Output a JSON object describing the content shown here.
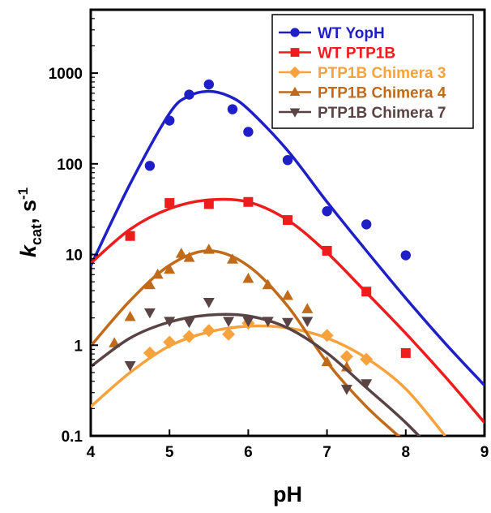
{
  "chart_data": {
    "type": "scatter",
    "xlabel": "pH",
    "ylabel": {
      "main": "k",
      "sub": "cat",
      "sep": ", s",
      "sup": "-1"
    },
    "xlim": [
      4,
      9
    ],
    "ylim": [
      0.1,
      5000
    ],
    "yscale": "log",
    "xticks": [
      4,
      5,
      6,
      7,
      8,
      9
    ],
    "yticks": [
      {
        "value": 0.1,
        "label": "0.1"
      },
      {
        "value": 1,
        "label": "1"
      },
      {
        "value": 10,
        "label": "10"
      },
      {
        "value": 100,
        "label": "100"
      },
      {
        "value": 1000,
        "label": "1000"
      }
    ],
    "legend_position": "top-right",
    "series": [
      {
        "name": "WT YopH",
        "color": "#1f1fc8",
        "marker": "circle",
        "points": [
          [
            4.75,
            95
          ],
          [
            5.0,
            300
          ],
          [
            5.25,
            580
          ],
          [
            5.5,
            750
          ],
          [
            5.8,
            400
          ],
          [
            6.0,
            225
          ],
          [
            6.5,
            110
          ],
          [
            7.0,
            30
          ],
          [
            7.5,
            21.5
          ],
          [
            8.0,
            9.8
          ]
        ],
        "fit": [
          [
            4.0,
            7.5
          ],
          [
            4.5,
            60
          ],
          [
            5.0,
            360
          ],
          [
            5.25,
            560
          ],
          [
            5.5,
            630
          ],
          [
            5.75,
            560
          ],
          [
            6.0,
            400
          ],
          [
            6.5,
            140
          ],
          [
            7.0,
            38
          ],
          [
            7.5,
            11
          ],
          [
            8.0,
            3.3
          ],
          [
            8.5,
            1.05
          ],
          [
            9.0,
            0.36
          ]
        ]
      },
      {
        "name": "WT PTP1B",
        "color": "#ee1c1c",
        "marker": "square",
        "points": [
          [
            4.5,
            16
          ],
          [
            5.0,
            37
          ],
          [
            5.5,
            36
          ],
          [
            6.0,
            38
          ],
          [
            6.5,
            24
          ],
          [
            7.0,
            11
          ],
          [
            7.5,
            3.9
          ],
          [
            8.0,
            0.82
          ]
        ],
        "fit": [
          [
            4.0,
            8
          ],
          [
            4.5,
            19
          ],
          [
            5.0,
            32
          ],
          [
            5.5,
            40
          ],
          [
            6.0,
            38
          ],
          [
            6.5,
            24
          ],
          [
            7.0,
            10.5
          ],
          [
            7.5,
            3.8
          ],
          [
            8.0,
            1.35
          ],
          [
            8.5,
            0.45
          ],
          [
            9.0,
            0.14
          ]
        ]
      },
      {
        "name": "PTP1B Chimera 3",
        "color": "#f7a23c",
        "marker": "diamond",
        "points": [
          [
            4.75,
            0.82
          ],
          [
            5.0,
            1.08
          ],
          [
            5.25,
            1.25
          ],
          [
            5.5,
            1.45
          ],
          [
            5.75,
            1.32
          ],
          [
            6.0,
            1.75
          ],
          [
            7.0,
            1.28
          ],
          [
            7.25,
            0.75
          ],
          [
            7.5,
            0.7
          ]
        ],
        "fit": [
          [
            4.0,
            0.21
          ],
          [
            4.5,
            0.5
          ],
          [
            5.0,
            0.98
          ],
          [
            5.5,
            1.4
          ],
          [
            6.0,
            1.62
          ],
          [
            6.5,
            1.55
          ],
          [
            7.0,
            1.2
          ],
          [
            7.5,
            0.72
          ],
          [
            8.0,
            0.33
          ],
          [
            8.5,
            0.1
          ]
        ]
      },
      {
        "name": "PTP1B Chimera 4",
        "color": "#c06a1a",
        "marker": "triangle-up",
        "points": [
          [
            4.3,
            1.05
          ],
          [
            4.5,
            2.05
          ],
          [
            4.75,
            4.6
          ],
          [
            4.85,
            6.0
          ],
          [
            5.0,
            6.8
          ],
          [
            5.15,
            10.2
          ],
          [
            5.25,
            9.2
          ],
          [
            5.5,
            11.3
          ],
          [
            5.8,
            8.8
          ],
          [
            6.0,
            5.4
          ],
          [
            6.25,
            4.6
          ],
          [
            6.5,
            3.5
          ],
          [
            6.75,
            2.5
          ],
          [
            7.0,
            0.65
          ],
          [
            7.25,
            0.57
          ]
        ],
        "fit": [
          [
            4.0,
            0.98
          ],
          [
            4.5,
            3.1
          ],
          [
            5.0,
            7.6
          ],
          [
            5.5,
            11.0
          ],
          [
            6.0,
            7.5
          ],
          [
            6.5,
            2.7
          ],
          [
            7.0,
            0.65
          ],
          [
            7.5,
            0.21
          ],
          [
            8.0,
            0.085
          ]
        ]
      },
      {
        "name": "PTP1B Chimera 7",
        "color": "#5a4345",
        "marker": "triangle-down",
        "points": [
          [
            4.5,
            0.6
          ],
          [
            4.75,
            2.3
          ],
          [
            5.0,
            1.85
          ],
          [
            5.25,
            1.8
          ],
          [
            5.5,
            3.0
          ],
          [
            5.75,
            1.85
          ],
          [
            6.0,
            1.85
          ],
          [
            6.25,
            1.85
          ],
          [
            6.5,
            1.8
          ],
          [
            6.75,
            1.85
          ],
          [
            7.25,
            0.33
          ],
          [
            7.5,
            0.38
          ]
        ],
        "fit": [
          [
            4.0,
            0.58
          ],
          [
            4.5,
            1.2
          ],
          [
            5.0,
            1.8
          ],
          [
            5.5,
            2.15
          ],
          [
            6.0,
            2.1
          ],
          [
            6.5,
            1.55
          ],
          [
            7.0,
            0.82
          ],
          [
            7.5,
            0.34
          ],
          [
            8.0,
            0.14
          ],
          [
            8.5,
            0.05
          ]
        ]
      }
    ]
  }
}
